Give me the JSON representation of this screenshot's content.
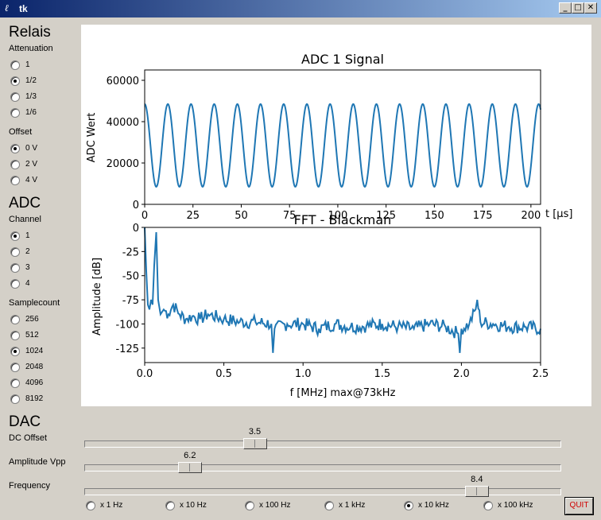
{
  "window": {
    "title": "tk"
  },
  "relais": {
    "title": "Relais",
    "attenuation_label": "Attenuation",
    "attenuation": [
      "1",
      "1/2",
      "1/3",
      "1/6"
    ],
    "attenuation_selected": "1/2",
    "offset_label": "Offset",
    "offset": [
      "0 V",
      "2 V",
      "4 V"
    ],
    "offset_selected": "0 V"
  },
  "adc": {
    "title": "ADC",
    "channel_label": "Channel",
    "channels": [
      "1",
      "2",
      "3",
      "4"
    ],
    "channel_selected": "1",
    "samplecount_label": "Samplecount",
    "samplecounts": [
      "256",
      "512",
      "1024",
      "2048",
      "4096",
      "8192"
    ],
    "samplecount_selected": "1024"
  },
  "dac": {
    "title": "DAC",
    "dc_offset": {
      "label": "DC Offset",
      "value": 3.5,
      "min": 0,
      "max": 10
    },
    "amplitude": {
      "label": "Amplitude Vpp",
      "value": 6.2,
      "min": 0,
      "max": 30
    },
    "frequency": {
      "label": "Frequency",
      "value": 8.4,
      "min": 0,
      "max": 10
    },
    "multipliers": [
      "x 1 Hz",
      "x 10 Hz",
      "x 100 Hz",
      "x 1 kHz",
      "x 10 kHz",
      "x 100 kHz"
    ],
    "multiplier_selected": "x 10 kHz",
    "quit_label": "QUIT"
  },
  "chart_data": [
    {
      "type": "line",
      "title": "ADC 1 Signal",
      "xlabel": "t [μs]",
      "ylabel": "ADC Wert",
      "xlim": [
        0,
        205
      ],
      "ylim": [
        0,
        65000
      ],
      "xticks": [
        0,
        25,
        50,
        75,
        100,
        125,
        150,
        175,
        200
      ],
      "yticks": [
        0,
        20000,
        40000,
        60000
      ],
      "series": [
        {
          "amplitude": 20000,
          "offset": 28500,
          "period_us": 12.0,
          "start_phase": "peak",
          "color": "#1f77b4"
        }
      ]
    },
    {
      "type": "line",
      "title": "FFT - Blackman",
      "xlabel": "f [MHz] max@73kHz",
      "ylabel": "Amplitude [dB]",
      "xlim": [
        0,
        2.5
      ],
      "ylim": [
        -140,
        0
      ],
      "xticks": [
        0.0,
        0.5,
        1.0,
        1.5,
        2.0,
        2.5
      ],
      "yticks": [
        0,
        -25,
        -50,
        -75,
        -100,
        -125
      ],
      "series": [
        {
          "color": "#1f77b4",
          "x": [
            0.0,
            0.01,
            0.02,
            0.03,
            0.04,
            0.05,
            0.06,
            0.073,
            0.085,
            0.1,
            0.12,
            0.15,
            0.18,
            0.22,
            0.26,
            0.3,
            0.35,
            0.4,
            0.5,
            0.6,
            0.7,
            0.8,
            0.81,
            0.82,
            0.9,
            1.0,
            1.1,
            1.2,
            1.3,
            1.4,
            1.5,
            1.6,
            1.7,
            1.8,
            1.9,
            1.98,
            1.99,
            2.0,
            2.05,
            2.09,
            2.1,
            2.12,
            2.2,
            2.3,
            2.4,
            2.5
          ],
          "y": [
            0,
            -45,
            -80,
            -85,
            -75,
            -80,
            -40,
            -5,
            -75,
            -90,
            -85,
            -90,
            -80,
            -90,
            -95,
            -92,
            -95,
            -90,
            -95,
            -98,
            -98,
            -100,
            -130,
            -105,
            -100,
            -100,
            -105,
            -100,
            -103,
            -102,
            -100,
            -103,
            -105,
            -100,
            -103,
            -110,
            -130,
            -105,
            -100,
            -85,
            -75,
            -98,
            -100,
            -103,
            -103,
            -105
          ]
        }
      ]
    }
  ]
}
